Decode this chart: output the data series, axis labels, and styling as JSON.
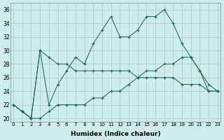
{
  "xlabel": "Humidex (Indice chaleur)",
  "background_color": "#ceecea",
  "grid_color": "#aaccca",
  "line_color": "#1a6b60",
  "xlim": [
    -0.3,
    23.3
  ],
  "ylim": [
    19.5,
    37
  ],
  "xticks": [
    0,
    1,
    2,
    3,
    4,
    5,
    6,
    7,
    8,
    9,
    10,
    11,
    12,
    13,
    14,
    15,
    16,
    17,
    18,
    19,
    20,
    21,
    22,
    23
  ],
  "yticks": [
    20,
    22,
    24,
    26,
    28,
    30,
    32,
    34,
    36
  ],
  "s1_x": [
    0,
    1,
    2,
    3,
    4,
    5,
    6,
    7,
    8,
    9,
    10,
    11,
    12,
    13,
    14,
    15,
    16,
    17,
    18,
    19,
    20,
    21,
    22,
    23
  ],
  "s1_y": [
    22,
    21,
    20,
    30,
    22,
    25,
    27,
    29,
    28,
    31,
    33,
    35,
    32,
    32,
    33,
    35,
    35,
    36,
    34,
    31,
    29,
    27,
    24,
    24
  ],
  "s2_x": [
    0,
    1,
    2,
    3,
    4,
    5,
    6,
    7,
    8,
    9,
    10,
    11,
    12,
    13,
    14,
    15,
    16,
    17,
    18,
    19,
    20,
    21,
    22,
    23
  ],
  "s2_y": [
    22,
    21,
    20,
    30,
    29,
    28,
    28,
    27,
    27,
    27,
    27,
    27,
    27,
    27,
    26,
    26,
    26,
    26,
    26,
    25,
    25,
    25,
    24,
    24
  ],
  "s3_x": [
    0,
    1,
    2,
    3,
    4,
    5,
    6,
    7,
    8,
    9,
    10,
    11,
    12,
    13,
    14,
    15,
    16,
    17,
    18,
    19,
    20,
    21,
    22,
    23
  ],
  "s3_y": [
    22,
    21,
    20,
    20,
    21,
    22,
    22,
    22,
    22,
    23,
    23,
    24,
    24,
    25,
    26,
    27,
    27,
    28,
    28,
    29,
    29,
    27,
    25,
    24
  ]
}
